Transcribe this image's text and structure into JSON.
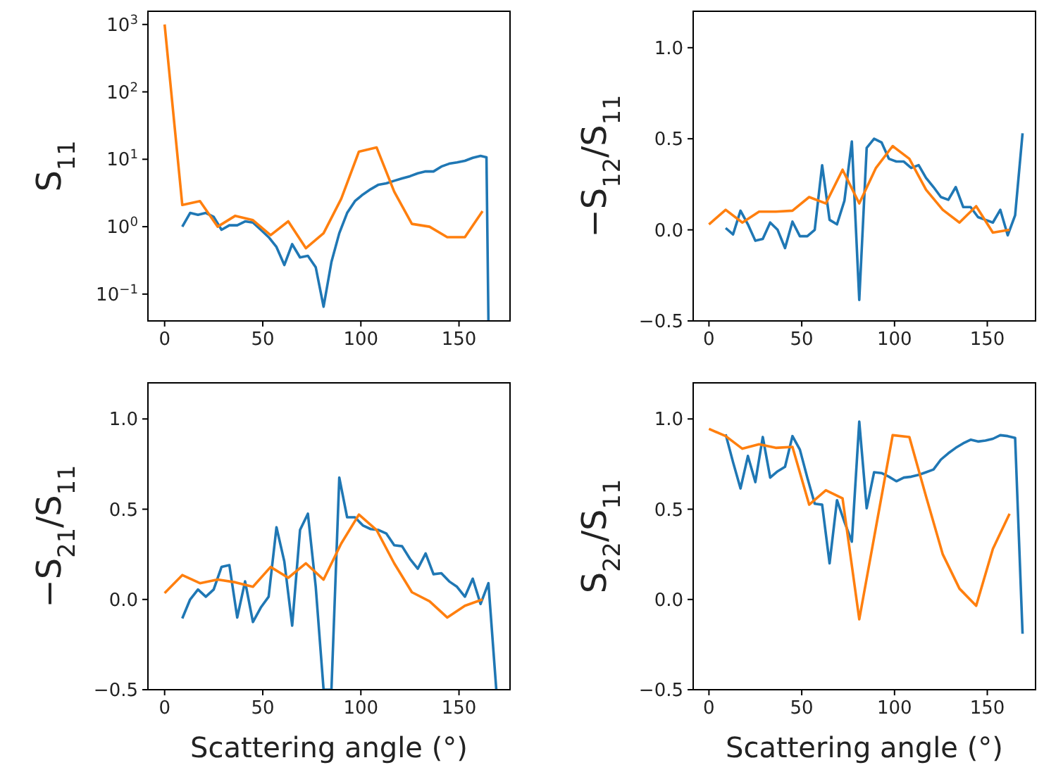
{
  "chart_data": [
    {
      "type": "line",
      "ylabel": "S$_{11}$",
      "log": "y",
      "xlim": [
        -8.5,
        176
      ],
      "ylim": [
        0.04,
        1570
      ],
      "xticks": [
        0,
        50,
        100,
        150
      ],
      "yticks": [
        {
          "value": 0.1,
          "label": "10$^{−1}$"
        },
        {
          "value": 1,
          "label": "10$^{0}$"
        },
        {
          "value": 10,
          "label": "10$^{1}$"
        },
        {
          "value": 100,
          "label": "10$^{2}$"
        },
        {
          "value": 1000,
          "label": "10$^{3}$"
        }
      ],
      "series": [
        {
          "color": "#1f77b4",
          "x": [
            9,
            13,
            17,
            21,
            25,
            29,
            33,
            37,
            41,
            45,
            49,
            53,
            57,
            61,
            65,
            69,
            73,
            77,
            81,
            85,
            89,
            93,
            97,
            101,
            105,
            109,
            113,
            117,
            121,
            125,
            129,
            133,
            137,
            141,
            145,
            149,
            153,
            157,
            161,
            164,
            165
          ],
          "values": [
            1.0,
            1.6,
            1.5,
            1.6,
            1.4,
            0.9,
            1.05,
            1.05,
            1.2,
            1.15,
            0.9,
            0.7,
            0.5,
            0.27,
            0.55,
            0.35,
            0.37,
            0.25,
            0.065,
            0.3,
            0.8,
            1.6,
            2.4,
            3.0,
            3.6,
            4.2,
            4.4,
            4.8,
            5.2,
            5.6,
            6.2,
            6.6,
            6.6,
            7.8,
            8.6,
            9,
            9.5,
            10.5,
            11.2,
            10.7,
            0.04
          ]
        },
        {
          "color": "#ff7f0e",
          "x": [
            0,
            9,
            18,
            27,
            36,
            45,
            54,
            63,
            72,
            81,
            90,
            99,
            108,
            117,
            126,
            135,
            144,
            153,
            162
          ],
          "values": [
            1000,
            2.1,
            2.4,
            1.0,
            1.45,
            1.25,
            0.75,
            1.2,
            0.48,
            0.8,
            2.6,
            13,
            15,
            3.3,
            1.1,
            1.0,
            0.7,
            0.7,
            1.7
          ]
        }
      ]
    },
    {
      "type": "line",
      "ylabel": "−S$_{12}$/S$_{11}$",
      "xlim": [
        -8.5,
        176
      ],
      "ylim": [
        -0.5,
        1.2
      ],
      "xticks": [
        0,
        50,
        100,
        150
      ],
      "yticks": [
        {
          "value": -0.5,
          "label": "−0.5"
        },
        {
          "value": 0,
          "label": "0.0"
        },
        {
          "value": 0.5,
          "label": "0.5"
        },
        {
          "value": 1,
          "label": "1.0"
        }
      ],
      "series": [
        {
          "color": "#1f77b4",
          "x": [
            9,
            13,
            17,
            21,
            25,
            29,
            33,
            37,
            41,
            45,
            49,
            53,
            57,
            61,
            65,
            69,
            73,
            77,
            81,
            85,
            89,
            93,
            97,
            101,
            105,
            109,
            113,
            117,
            121,
            125,
            129,
            133,
            137,
            141,
            145,
            149,
            153,
            157,
            161,
            165,
            169
          ],
          "values": [
            0.01,
            -0.025,
            0.105,
            0.03,
            -0.06,
            -0.05,
            0.04,
            0.0,
            -0.1,
            0.045,
            -0.035,
            -0.035,
            0.0,
            0.355,
            0.055,
            0.03,
            0.16,
            0.485,
            -0.385,
            0.45,
            0.5,
            0.48,
            0.39,
            0.375,
            0.375,
            0.34,
            0.355,
            0.285,
            0.235,
            0.18,
            0.165,
            0.235,
            0.125,
            0.125,
            0.07,
            0.055,
            0.04,
            0.11,
            -0.03,
            0.08,
            0.53
          ]
        },
        {
          "color": "#ff7f0e",
          "x": [
            0,
            9,
            18,
            27,
            36,
            45,
            54,
            63,
            72,
            81,
            90,
            99,
            108,
            117,
            126,
            135,
            144,
            153,
            162
          ],
          "values": [
            0.03,
            0.11,
            0.04,
            0.1,
            0.1,
            0.105,
            0.18,
            0.145,
            0.33,
            0.145,
            0.34,
            0.46,
            0.39,
            0.22,
            0.11,
            0.04,
            0.13,
            -0.015,
            0.0
          ]
        }
      ]
    },
    {
      "type": "line",
      "ylabel": "−S$_{21}$/S$_{11}$",
      "xlabel": "Scattering angle (°)",
      "xlim": [
        -8.5,
        176
      ],
      "ylim": [
        -0.5,
        1.2
      ],
      "xticks": [
        0,
        50,
        100,
        150
      ],
      "yticks": [
        {
          "value": -0.5,
          "label": "−0.5"
        },
        {
          "value": 0,
          "label": "0.0"
        },
        {
          "value": 0.5,
          "label": "0.5"
        },
        {
          "value": 1,
          "label": "1.0"
        }
      ],
      "series": [
        {
          "color": "#1f77b4",
          "x": [
            9,
            13,
            17,
            21,
            25,
            29,
            33,
            37,
            41,
            45,
            49,
            53,
            57,
            61,
            65,
            69,
            73,
            77,
            81,
            85,
            89,
            93,
            97,
            101,
            105,
            109,
            113,
            117,
            121,
            125,
            129,
            133,
            137,
            141,
            145,
            149,
            153,
            157,
            161,
            165,
            169
          ],
          "values": [
            -0.105,
            0.0,
            0.055,
            0.015,
            0.055,
            0.18,
            0.19,
            -0.1,
            0.1,
            -0.125,
            -0.045,
            0.015,
            0.4,
            0.21,
            -0.145,
            0.385,
            0.475,
            0.07,
            -0.5,
            -0.5,
            0.675,
            0.455,
            0.455,
            0.41,
            0.39,
            0.385,
            0.365,
            0.3,
            0.295,
            0.225,
            0.17,
            0.255,
            0.14,
            0.145,
            0.1,
            0.07,
            0.015,
            0.115,
            -0.025,
            0.09,
            -0.5
          ]
        },
        {
          "color": "#ff7f0e",
          "x": [
            0,
            9,
            18,
            27,
            36,
            45,
            54,
            63,
            72,
            81,
            90,
            99,
            108,
            117,
            126,
            135,
            144,
            153,
            162
          ],
          "values": [
            0.035,
            0.135,
            0.09,
            0.11,
            0.095,
            0.07,
            0.18,
            0.12,
            0.2,
            0.11,
            0.31,
            0.47,
            0.385,
            0.2,
            0.04,
            -0.01,
            -0.1,
            -0.035,
            0.0
          ]
        }
      ]
    },
    {
      "type": "line",
      "ylabel": "S$_{22}$/S$_{11}$",
      "xlabel": "Scattering angle (°)",
      "xlim": [
        -8.5,
        176
      ],
      "ylim": [
        -0.5,
        1.2
      ],
      "xticks": [
        0,
        50,
        100,
        150
      ],
      "yticks": [
        {
          "value": -0.5,
          "label": "−0.5"
        },
        {
          "value": 0,
          "label": "0.0"
        },
        {
          "value": 0.5,
          "label": "0.5"
        },
        {
          "value": 1,
          "label": "1.0"
        }
      ],
      "series": [
        {
          "color": "#1f77b4",
          "x": [
            9,
            13,
            17,
            21,
            25,
            29,
            33,
            37,
            41,
            45,
            49,
            53,
            57,
            61,
            65,
            69,
            73,
            77,
            81,
            85,
            89,
            93,
            97,
            101,
            105,
            109,
            113,
            117,
            121,
            125,
            129,
            133,
            137,
            141,
            145,
            149,
            153,
            157,
            161,
            165,
            169
          ],
          "values": [
            0.915,
            0.76,
            0.615,
            0.795,
            0.65,
            0.9,
            0.675,
            0.71,
            0.735,
            0.905,
            0.83,
            0.675,
            0.53,
            0.525,
            0.2,
            0.55,
            0.43,
            0.32,
            0.985,
            0.505,
            0.705,
            0.7,
            0.68,
            0.655,
            0.675,
            0.68,
            0.69,
            0.705,
            0.72,
            0.775,
            0.81,
            0.84,
            0.865,
            0.885,
            0.875,
            0.88,
            0.89,
            0.91,
            0.905,
            0.895,
            -0.19
          ]
        },
        {
          "color": "#ff7f0e",
          "x": [
            0,
            9,
            18,
            27,
            36,
            45,
            54,
            63,
            72,
            81,
            90,
            99,
            108,
            117,
            126,
            135,
            144,
            153,
            162
          ],
          "values": [
            0.945,
            0.905,
            0.835,
            0.86,
            0.84,
            0.845,
            0.525,
            0.605,
            0.56,
            -0.11,
            0.4,
            0.91,
            0.9,
            0.57,
            0.25,
            0.06,
            -0.035,
            0.28,
            0.475
          ]
        }
      ]
    }
  ]
}
